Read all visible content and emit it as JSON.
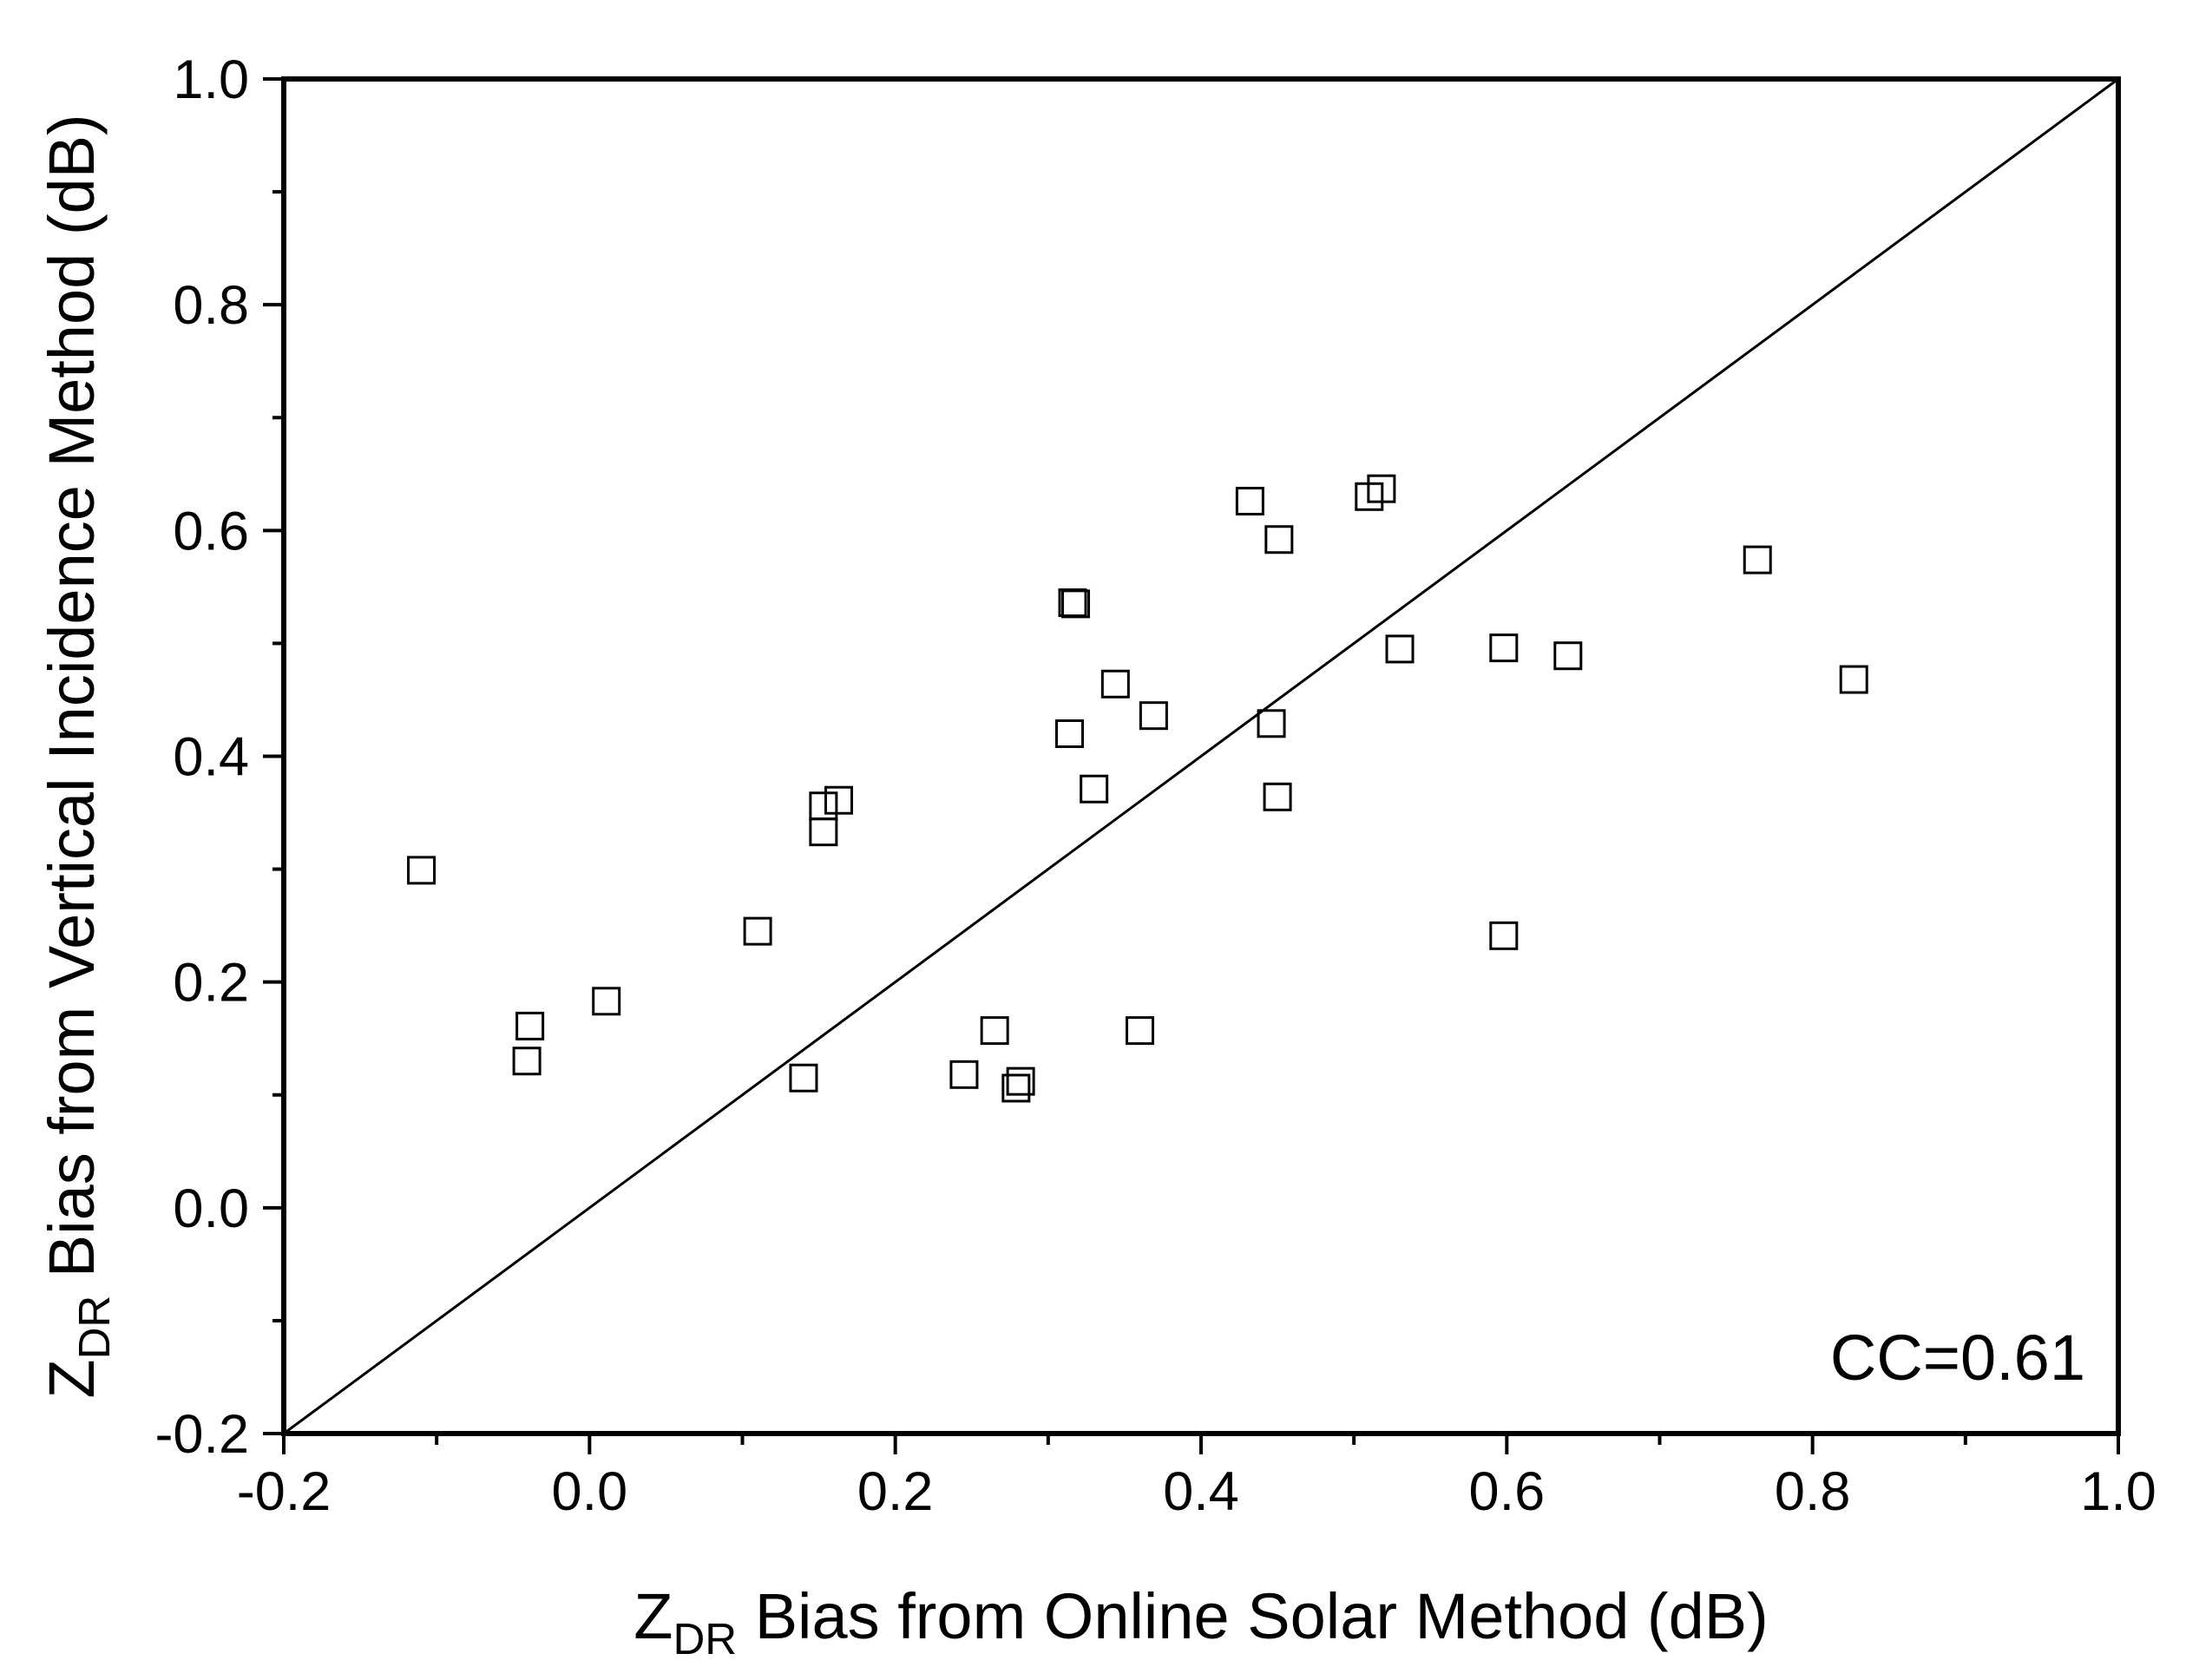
{
  "chart_data": {
    "type": "scatter",
    "title": "",
    "xlabel": {
      "main": "Z",
      "sub": "DR",
      "rest": " Bias from Online Solar Method (dB)"
    },
    "ylabel": {
      "main": "Z",
      "sub": "DR",
      "rest": " Bias from Vertical Incidence Method (dB)"
    },
    "xlim": [
      -0.2,
      1.0
    ],
    "ylim": [
      -0.2,
      1.0
    ],
    "xticks": [
      "-0.2",
      "0.0",
      "0.2",
      "0.4",
      "0.6",
      "0.8",
      "1.0"
    ],
    "yticks": [
      "-0.2",
      "0.0",
      "0.2",
      "0.4",
      "0.6",
      "0.8",
      "1.0"
    ],
    "grid": false,
    "reference_line": {
      "type": "1:1",
      "from": [
        -0.2,
        -0.2
      ],
      "to": [
        1.0,
        1.0
      ]
    },
    "annotation": "CC=0.61",
    "marker": "open-square",
    "points": [
      {
        "x": -0.11,
        "y": 0.299
      },
      {
        "x": -0.039,
        "y": 0.161
      },
      {
        "x": -0.041,
        "y": 0.13
      },
      {
        "x": 0.011,
        "y": 0.183
      },
      {
        "x": 0.11,
        "y": 0.245
      },
      {
        "x": 0.14,
        "y": 0.115
      },
      {
        "x": 0.153,
        "y": 0.356
      },
      {
        "x": 0.153,
        "y": 0.333
      },
      {
        "x": 0.163,
        "y": 0.361
      },
      {
        "x": 0.245,
        "y": 0.118
      },
      {
        "x": 0.265,
        "y": 0.157
      },
      {
        "x": 0.282,
        "y": 0.112
      },
      {
        "x": 0.279,
        "y": 0.106
      },
      {
        "x": 0.314,
        "y": 0.42
      },
      {
        "x": 0.316,
        "y": 0.536
      },
      {
        "x": 0.318,
        "y": 0.535
      },
      {
        "x": 0.33,
        "y": 0.371
      },
      {
        "x": 0.344,
        "y": 0.464
      },
      {
        "x": 0.36,
        "y": 0.157
      },
      {
        "x": 0.369,
        "y": 0.436
      },
      {
        "x": 0.432,
        "y": 0.626
      },
      {
        "x": 0.446,
        "y": 0.429
      },
      {
        "x": 0.45,
        "y": 0.364
      },
      {
        "x": 0.451,
        "y": 0.592
      },
      {
        "x": 0.51,
        "y": 0.63
      },
      {
        "x": 0.518,
        "y": 0.637
      },
      {
        "x": 0.53,
        "y": 0.495
      },
      {
        "x": 0.598,
        "y": 0.496
      },
      {
        "x": 0.598,
        "y": 0.241
      },
      {
        "x": 0.64,
        "y": 0.489
      },
      {
        "x": 0.764,
        "y": 0.574
      },
      {
        "x": 0.827,
        "y": 0.468
      }
    ]
  }
}
